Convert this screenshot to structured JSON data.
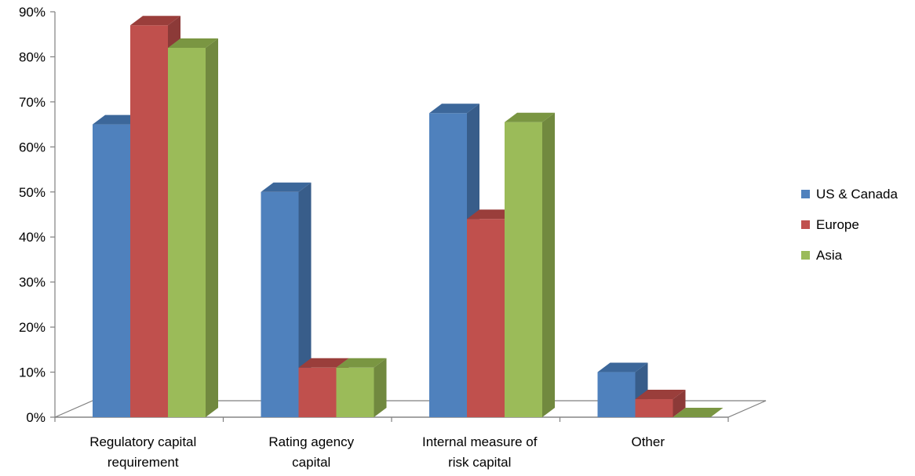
{
  "chart_data": {
    "type": "bar",
    "title": "",
    "xlabel": "",
    "ylabel": "",
    "ylim": [
      0,
      90
    ],
    "y_ticks": [
      "0%",
      "10%",
      "20%",
      "30%",
      "40%",
      "50%",
      "60%",
      "70%",
      "80%",
      "90%"
    ],
    "categories": [
      [
        "Regulatory capital",
        "requirement"
      ],
      [
        "Rating agency",
        "capital"
      ],
      [
        "Internal measure of",
        "risk capital"
      ],
      [
        "Other"
      ]
    ],
    "series": [
      {
        "name": "US & Canada",
        "values": [
          65,
          50,
          67.5,
          10
        ],
        "color": "#4F81BD",
        "side_color": "#385D8A",
        "top_color": "#3C679A"
      },
      {
        "name": "Europe",
        "values": [
          87,
          11,
          44,
          4
        ],
        "color": "#C0504D",
        "side_color": "#8C3A38",
        "top_color": "#9A3E3B"
      },
      {
        "name": "Asia",
        "values": [
          82,
          11,
          65.5,
          0
        ],
        "color": "#9BBB59",
        "side_color": "#71893F",
        "top_color": "#7A9642"
      }
    ],
    "legend_position": "right",
    "grid": false,
    "style": "3d-clustered-column"
  }
}
